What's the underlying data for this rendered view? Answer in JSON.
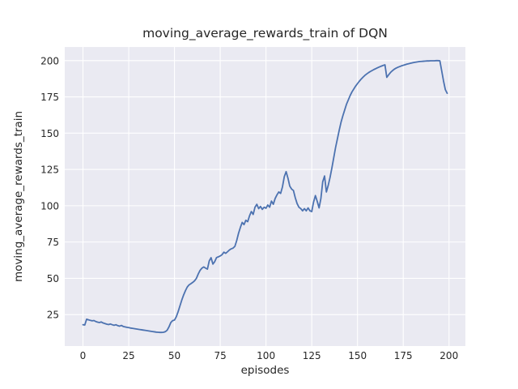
{
  "figure": {
    "title": "moving_average_rewards_train of DQN",
    "xlabel": "episodes",
    "ylabel": "moving_average_rewards_train"
  },
  "chart_data": {
    "type": "line",
    "title": "moving_average_rewards_train of DQN",
    "xlabel": "episodes",
    "ylabel": "moving_average_rewards_train",
    "x_ticks": [
      0,
      25,
      50,
      75,
      100,
      125,
      150,
      175,
      200
    ],
    "y_ticks": [
      25,
      50,
      75,
      100,
      125,
      150,
      175,
      200
    ],
    "xlim": [
      -9.95,
      208.95
    ],
    "ylim": [
      3.3,
      209.4
    ],
    "grid": true,
    "legend_position": "none",
    "style": {
      "figure_background": "#ffffff",
      "axes_background": "#eaeaf2",
      "grid_color": "#ffffff",
      "line_color": "#4c72b0",
      "text_color": "#262626"
    },
    "series": [
      {
        "name": "moving_average_rewards_train",
        "x": [
          0,
          1,
          2,
          3,
          4,
          5,
          6,
          7,
          8,
          9,
          10,
          11,
          12,
          13,
          14,
          15,
          16,
          17,
          18,
          19,
          20,
          21,
          22,
          23,
          24,
          25,
          26,
          27,
          28,
          29,
          30,
          31,
          32,
          33,
          34,
          35,
          36,
          37,
          38,
          39,
          40,
          41,
          42,
          43,
          44,
          45,
          46,
          47,
          48,
          49,
          50,
          51,
          52,
          53,
          54,
          55,
          56,
          57,
          58,
          59,
          60,
          61,
          62,
          63,
          64,
          65,
          66,
          67,
          68,
          69,
          70,
          71,
          72,
          73,
          74,
          75,
          76,
          77,
          78,
          79,
          80,
          81,
          82,
          83,
          84,
          85,
          86,
          87,
          88,
          89,
          90,
          91,
          92,
          93,
          94,
          95,
          96,
          97,
          98,
          99,
          100,
          101,
          102,
          103,
          104,
          105,
          106,
          107,
          108,
          109,
          110,
          111,
          112,
          113,
          114,
          115,
          116,
          117,
          118,
          119,
          120,
          121,
          122,
          123,
          124,
          125,
          126,
          127,
          128,
          129,
          130,
          131,
          132,
          133,
          134,
          135,
          136,
          137,
          138,
          139,
          140,
          141,
          142,
          143,
          144,
          145,
          146,
          147,
          148,
          149,
          150,
          151,
          152,
          153,
          154,
          155,
          156,
          157,
          158,
          159,
          160,
          161,
          162,
          163,
          164,
          165,
          166,
          167,
          168,
          169,
          170,
          171,
          172,
          173,
          174,
          175,
          176,
          177,
          178,
          179,
          180,
          181,
          182,
          183,
          184,
          185,
          186,
          187,
          188,
          189,
          190,
          191,
          192,
          193,
          194,
          195,
          196,
          197,
          198,
          199
        ],
        "y": [
          18.0,
          17.8,
          21.8,
          21.4,
          21.0,
          20.7,
          20.9,
          20.2,
          19.8,
          19.5,
          19.9,
          19.2,
          18.8,
          18.4,
          18.1,
          18.5,
          18.0,
          17.6,
          18.0,
          17.4,
          17.0,
          17.5,
          16.8,
          16.5,
          16.2,
          16.0,
          15.7,
          15.5,
          15.3,
          15.1,
          14.9,
          14.7,
          14.5,
          14.3,
          14.1,
          13.9,
          13.7,
          13.5,
          13.3,
          13.1,
          12.9,
          12.8,
          12.7,
          12.7,
          12.8,
          13.2,
          14.2,
          16.5,
          19.5,
          20.8,
          21.2,
          23.5,
          27.0,
          31.0,
          35.0,
          38.5,
          41.5,
          44.0,
          45.5,
          46.3,
          47.2,
          48.3,
          50.0,
          53.0,
          55.5,
          57.0,
          57.8,
          57.0,
          56.3,
          62.0,
          64.2,
          59.8,
          61.5,
          64.3,
          64.8,
          65.4,
          66.3,
          68.0,
          67.2,
          68.3,
          69.5,
          70.3,
          70.8,
          72.0,
          76.0,
          81.0,
          85.0,
          88.5,
          87.0,
          90.0,
          89.0,
          93.0,
          96.0,
          94.0,
          99.0,
          101.0,
          98.0,
          99.5,
          97.5,
          99.0,
          98.3,
          100.5,
          99.0,
          103.2,
          101.0,
          105.0,
          107.5,
          109.5,
          108.5,
          113.0,
          120.0,
          123.5,
          119.0,
          113.5,
          111.5,
          110.5,
          105.5,
          101.5,
          99.0,
          98.0,
          96.5,
          98.0,
          96.5,
          98.5,
          96.5,
          96.0,
          102.5,
          107.0,
          103.0,
          98.5,
          105.0,
          116.5,
          120.5,
          109.5,
          114.0,
          119.5,
          126.0,
          133.0,
          140.0,
          146.0,
          152.0,
          157.5,
          162.0,
          166.0,
          170.0,
          173.0,
          176.0,
          178.5,
          180.5,
          182.5,
          184.2,
          185.8,
          187.3,
          188.6,
          189.8,
          190.8,
          191.7,
          192.5,
          193.2,
          193.9,
          194.5,
          195.1,
          195.7,
          196.2,
          196.7,
          197.1,
          188.5,
          190.2,
          191.8,
          193.0,
          194.0,
          194.8,
          195.4,
          195.9,
          196.4,
          196.8,
          197.2,
          197.6,
          197.9,
          198.2,
          198.5,
          198.8,
          199.0,
          199.2,
          199.4,
          199.5,
          199.6,
          199.7,
          199.8,
          199.8,
          199.9,
          199.9,
          199.9,
          200.0,
          200.0,
          199.9,
          193.0,
          186.0,
          180.0,
          177.5
        ]
      }
    ]
  }
}
